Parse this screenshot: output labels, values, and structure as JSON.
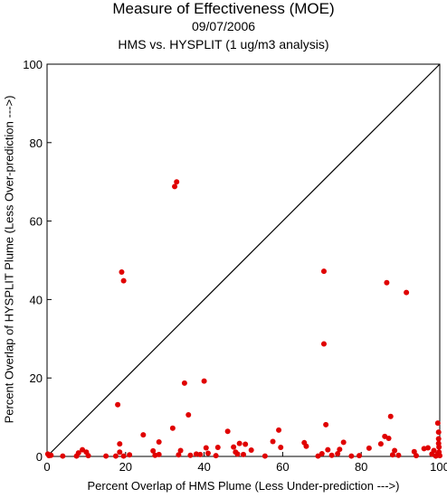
{
  "chart_data": {
    "type": "scatter",
    "title": "Measure of Effectiveness (MOE)",
    "date": "09/07/2006",
    "subtitle": "HMS vs. HYSPLIT  (1 ug/m3 analysis)",
    "xlabel": "Percent Overlap of HMS Plume (Less Under-prediction --->)",
    "ylabel": "Percent Overlap of HYSPLIT Plume (Less Over-prediction --->)",
    "xlim": [
      0,
      100
    ],
    "ylim": [
      0,
      100
    ],
    "xticks": [
      "0",
      "20",
      "40",
      "60",
      "80",
      "100"
    ],
    "yticks": [
      "0",
      "20",
      "40",
      "60",
      "80",
      "100"
    ],
    "diagonal": true,
    "grid": false,
    "marker_color": "#e00000",
    "points": [
      [
        0.5,
        0.2
      ],
      [
        1,
        0.3
      ],
      [
        0.2,
        0.6
      ],
      [
        4,
        0.1
      ],
      [
        7.5,
        0.1
      ],
      [
        8,
        0.9
      ],
      [
        9,
        1.7
      ],
      [
        10,
        1.1
      ],
      [
        10.5,
        0.2
      ],
      [
        15,
        0.1
      ],
      [
        17.5,
        0.1
      ],
      [
        18,
        13.2
      ],
      [
        18.5,
        3.2
      ],
      [
        18.5,
        1.1
      ],
      [
        19,
        47
      ],
      [
        19.5,
        44.8
      ],
      [
        19.5,
        0.1
      ],
      [
        21,
        0.4
      ],
      [
        24.5,
        5.5
      ],
      [
        27,
        1.4
      ],
      [
        27.5,
        0.3
      ],
      [
        28.5,
        3.7
      ],
      [
        28.5,
        0.5
      ],
      [
        32,
        7.2
      ],
      [
        32.5,
        68.8
      ],
      [
        33,
        70
      ],
      [
        33.5,
        0.4
      ],
      [
        34,
        1.5
      ],
      [
        35,
        18.7
      ],
      [
        36,
        10.6
      ],
      [
        36.5,
        0.3
      ],
      [
        38,
        0.6
      ],
      [
        39,
        0.5
      ],
      [
        40,
        19.2
      ],
      [
        40.5,
        2.2
      ],
      [
        41,
        0.8
      ],
      [
        43,
        0.2
      ],
      [
        43.5,
        2.3
      ],
      [
        46,
        6.4
      ],
      [
        47.5,
        2.4
      ],
      [
        48,
        1.1
      ],
      [
        48.5,
        0.6
      ],
      [
        49,
        3.3
      ],
      [
        50,
        0.5
      ],
      [
        50.5,
        3.1
      ],
      [
        52,
        1.6
      ],
      [
        55.5,
        0.1
      ],
      [
        57.5,
        3.8
      ],
      [
        59,
        6.7
      ],
      [
        59.5,
        2.3
      ],
      [
        65.5,
        3.5
      ],
      [
        66,
        2.6
      ],
      [
        69,
        0.1
      ],
      [
        70,
        0.7
      ],
      [
        70.5,
        28.7
      ],
      [
        70.5,
        47.2
      ],
      [
        71,
        8.1
      ],
      [
        71.5,
        1.7
      ],
      [
        72.5,
        0.3
      ],
      [
        74,
        0.7
      ],
      [
        74.5,
        1.8
      ],
      [
        75.5,
        3.6
      ],
      [
        77.5,
        0.1
      ],
      [
        79.5,
        0.2
      ],
      [
        82,
        2.1
      ],
      [
        85,
        3.2
      ],
      [
        86,
        5.1
      ],
      [
        86.5,
        44.3
      ],
      [
        87,
        4.6
      ],
      [
        87.5,
        10.2
      ],
      [
        88,
        0.4
      ],
      [
        88.5,
        1.5
      ],
      [
        89.5,
        0.3
      ],
      [
        91.5,
        41.8
      ],
      [
        93.5,
        1.2
      ],
      [
        94,
        0.2
      ],
      [
        96,
        2
      ],
      [
        97,
        2.2
      ],
      [
        98,
        0.6
      ],
      [
        98.5,
        1.5
      ],
      [
        99,
        0.1
      ],
      [
        99.5,
        8.5
      ],
      [
        99.7,
        6.2
      ],
      [
        99.7,
        4.5
      ],
      [
        99.7,
        3.3
      ],
      [
        99.8,
        2.4
      ],
      [
        99.8,
        1.1
      ],
      [
        100,
        0.2
      ],
      [
        99.5,
        0.6
      ]
    ]
  }
}
